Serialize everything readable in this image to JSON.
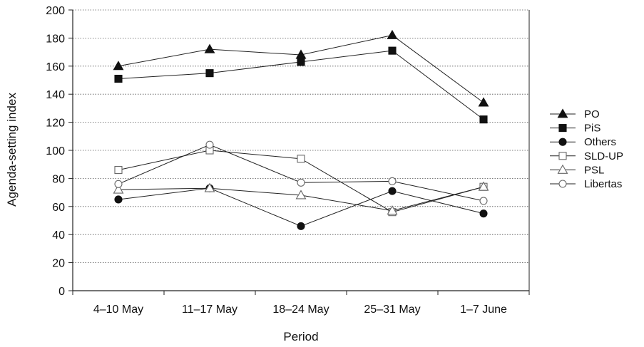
{
  "chart_data": {
    "type": "line",
    "title": "",
    "xlabel": "Period",
    "ylabel": "Agenda-setting index",
    "categories": [
      "4–10 May",
      "11–17 May",
      "18–24 May",
      "25–31 May",
      "1–7 June"
    ],
    "ylim": [
      0,
      200
    ],
    "yticks": [
      0,
      20,
      40,
      60,
      80,
      100,
      120,
      140,
      160,
      180,
      200
    ],
    "grid": "horizontal dotted",
    "legend_position": "right",
    "series": [
      {
        "name": "PO",
        "marker": "triangle-filled",
        "values": [
          160,
          172,
          168,
          182,
          134
        ]
      },
      {
        "name": "PiS",
        "marker": "square-filled",
        "values": [
          151,
          155,
          163,
          171,
          122
        ]
      },
      {
        "name": "Others",
        "marker": "circle-filled",
        "values": [
          65,
          73,
          46,
          71,
          55
        ]
      },
      {
        "name": "SLD-UP",
        "marker": "square-open",
        "values": [
          86,
          100,
          94,
          56,
          74
        ]
      },
      {
        "name": "PSL",
        "marker": "triangle-open",
        "values": [
          72,
          73,
          68,
          57,
          74
        ]
      },
      {
        "name": "Libertas",
        "marker": "circle-open",
        "values": [
          76,
          104,
          77,
          78,
          64
        ]
      }
    ]
  }
}
